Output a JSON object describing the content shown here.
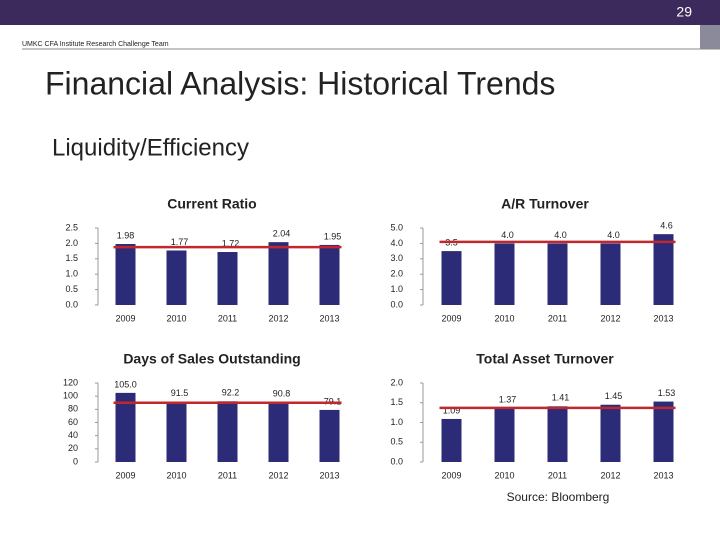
{
  "slide_number": "29",
  "header": "UMKC CFA Institute Research Challenge Team",
  "title": "Financial Analysis: Historical Trends",
  "subtitle": "Liquidity/Efficiency",
  "source": "Source: Bloomberg",
  "chart_data": [
    {
      "type": "bar",
      "title": "Current Ratio",
      "categories": [
        "2009",
        "2010",
        "2011",
        "2012",
        "2013"
      ],
      "values": [
        1.98,
        1.77,
        1.72,
        2.04,
        1.95
      ],
      "color": "#2b2b78",
      "ylim": [
        0,
        2.5
      ],
      "yticks": [
        {
          "value": 0,
          "label": "0.0"
        },
        0.5,
        {
          "value": 1,
          "label": "1.0"
        },
        1.5,
        {
          "value": 2,
          "label": "2.0"
        },
        2.5
      ],
      "reference_line": {
        "value": 1.88,
        "color": "#c0282d"
      }
    },
    {
      "type": "bar",
      "title": "A/R Turnover",
      "categories": [
        "2009",
        "2010",
        "2011",
        "2012",
        "2013"
      ],
      "values": [
        3.5,
        4,
        4,
        4,
        4.6
      ],
      "value_labels": [
        "3.5",
        "4.0",
        "4.0",
        "4.0",
        "4.6"
      ],
      "color": "#2b2b78",
      "ylim": [
        0,
        5
      ],
      "yticks": [
        {
          "value": 0,
          "label": "0.0"
        },
        {
          "value": 1,
          "label": "1.0"
        },
        {
          "value": 2,
          "label": "2.0"
        },
        {
          "value": 3,
          "label": "3.0"
        },
        {
          "value": 4,
          "label": "4.0"
        },
        {
          "value": 5,
          "label": "5.0"
        }
      ],
      "reference_line": {
        "value": 4.1,
        "color": "#c0282d"
      }
    },
    {
      "type": "bar",
      "title": "Days of Sales Outstanding",
      "categories": [
        "2009",
        "2010",
        "2011",
        "2012",
        "2013"
      ],
      "values": [
        105,
        91.5,
        92.2,
        90.8,
        79.1
      ],
      "value_labels": [
        "105.0",
        "91.5",
        "92.2",
        "90.8",
        "79.1"
      ],
      "color": "#2b2b78",
      "ylim": [
        0,
        120
      ],
      "yticks": [
        0,
        20,
        40,
        60,
        80,
        100,
        120
      ],
      "reference_line": {
        "value": 90,
        "color": "#c0282d"
      }
    },
    {
      "type": "bar",
      "title": "Total Asset Turnover",
      "categories": [
        "2009",
        "2010",
        "2011",
        "2012",
        "2013"
      ],
      "values": [
        1.09,
        1.37,
        1.41,
        1.45,
        1.53
      ],
      "color": "#2b2b78",
      "ylim": [
        0,
        2
      ],
      "yticks": [
        {
          "value": 0,
          "label": "0.0"
        },
        0.5,
        {
          "value": 1,
          "label": "1.0"
        },
        1.5,
        {
          "value": 2,
          "label": "2.0"
        }
      ],
      "reference_line": {
        "value": 1.37,
        "color": "#c0282d"
      }
    }
  ]
}
